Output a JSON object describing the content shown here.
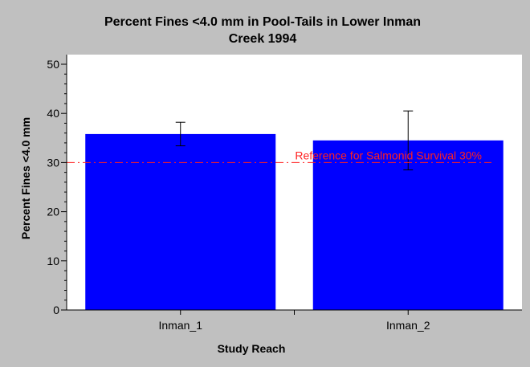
{
  "chart_data": {
    "type": "bar",
    "title_lines": [
      "Percent Fines <4.0 mm in Pool-Tails in Lower Inman",
      "Creek 1994"
    ],
    "xlabel": "Study Reach",
    "ylabel": "Percent Fines <4.0 mm",
    "categories": [
      "Inman_1",
      "Inman_2"
    ],
    "values": [
      35.8,
      34.5
    ],
    "error_high": [
      38.2,
      40.5
    ],
    "error_low": [
      33.4,
      28.5
    ],
    "ylim": [
      0,
      50
    ],
    "yticks": [
      "0",
      "10",
      "20",
      "30",
      "40",
      "50"
    ],
    "ytick_values": [
      0,
      10,
      20,
      30,
      40,
      50
    ],
    "reference_line": {
      "value": 30,
      "label": "Reference for Salmonid Survival 30%"
    },
    "bar_color": "#0000ff",
    "reference_color": "#ff2020",
    "plot_background": "#ffffff",
    "page_background": "#c0c0c0",
    "grid": false,
    "legend": "none"
  }
}
